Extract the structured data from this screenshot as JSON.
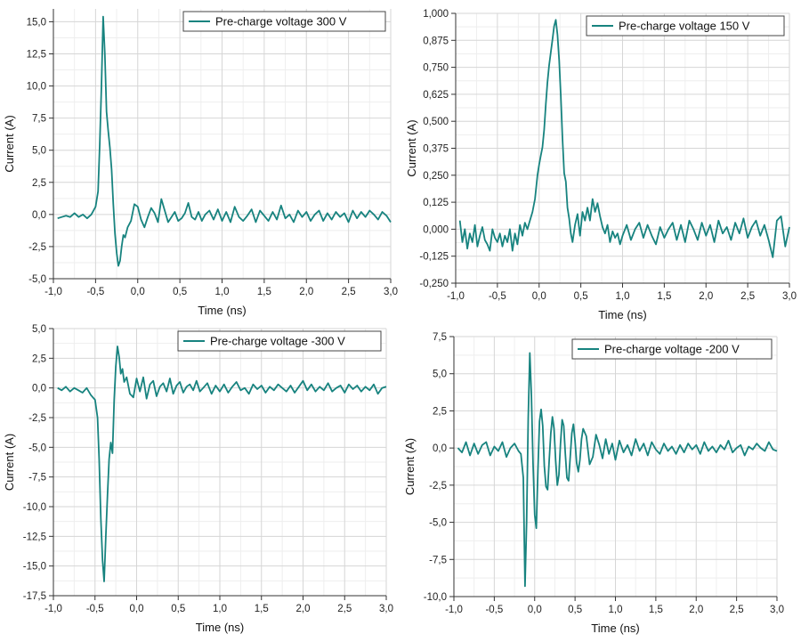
{
  "colors": {
    "trace": "#17837f",
    "grid": "#d6d6d6",
    "axis": "#333333",
    "minor": "#eeeeee"
  },
  "chart_data": [
    {
      "type": "line",
      "title": "",
      "xlabel": "Time (ns)",
      "ylabel": "Current (A)",
      "xlim": [
        -1.0,
        3.0
      ],
      "ylim": [
        -5.0,
        16.0
      ],
      "xticks": [
        -1.0,
        -0.5,
        0.0,
        0.5,
        1.0,
        1.5,
        2.0,
        2.5,
        3.0
      ],
      "xtick_labels": [
        "-1,0",
        "-0,5",
        "0,0",
        "0,5",
        "1,0",
        "1,5",
        "2,0",
        "2,5",
        "3,0"
      ],
      "yticks": [
        -5.0,
        -2.5,
        0.0,
        2.5,
        5.0,
        7.5,
        10.0,
        12.5,
        15.0
      ],
      "ytick_labels": [
        "-5,0",
        "-2,5",
        "0,0",
        "2,5",
        "5,0",
        "7,5",
        "10,0",
        "12,5",
        "15,0"
      ],
      "grid": true,
      "legend_position": "top-right",
      "series": [
        {
          "name": "Pre-charge voltage 300 V",
          "x": [
            -0.95,
            -0.9,
            -0.85,
            -0.8,
            -0.75,
            -0.7,
            -0.65,
            -0.6,
            -0.55,
            -0.5,
            -0.47,
            -0.45,
            -0.43,
            -0.41,
            -0.39,
            -0.37,
            -0.35,
            -0.33,
            -0.31,
            -0.29,
            -0.27,
            -0.25,
            -0.23,
            -0.21,
            -0.19,
            -0.17,
            -0.15,
            -0.12,
            -0.08,
            -0.04,
            0.0,
            0.04,
            0.08,
            0.12,
            0.16,
            0.2,
            0.24,
            0.28,
            0.32,
            0.36,
            0.4,
            0.44,
            0.48,
            0.52,
            0.56,
            0.6,
            0.64,
            0.68,
            0.72,
            0.76,
            0.8,
            0.85,
            0.9,
            0.95,
            1.0,
            1.05,
            1.1,
            1.15,
            1.2,
            1.25,
            1.3,
            1.35,
            1.4,
            1.45,
            1.5,
            1.55,
            1.6,
            1.65,
            1.7,
            1.75,
            1.8,
            1.85,
            1.9,
            1.95,
            2.0,
            2.05,
            2.1,
            2.15,
            2.2,
            2.25,
            2.3,
            2.35,
            2.4,
            2.45,
            2.5,
            2.55,
            2.6,
            2.65,
            2.7,
            2.75,
            2.8,
            2.85,
            2.9,
            2.95,
            3.0
          ],
          "y": [
            -0.3,
            -0.2,
            -0.1,
            -0.2,
            0.1,
            -0.2,
            0.0,
            -0.3,
            0.0,
            0.6,
            1.8,
            5.5,
            10.0,
            15.4,
            12.5,
            8.0,
            6.5,
            5.2,
            3.5,
            0.8,
            -1.5,
            -3.0,
            -4.0,
            -3.6,
            -2.5,
            -1.6,
            -1.8,
            -1.0,
            -0.5,
            0.8,
            0.6,
            -0.4,
            -1.0,
            -0.2,
            0.5,
            0.1,
            -0.6,
            1.2,
            0.3,
            -0.6,
            -0.2,
            0.2,
            -0.5,
            -0.3,
            0.1,
            0.9,
            -0.2,
            -0.4,
            0.2,
            -0.5,
            0.0,
            0.3,
            -0.4,
            0.4,
            -0.5,
            0.2,
            -0.6,
            0.6,
            -0.2,
            -0.5,
            -0.1,
            0.4,
            -0.6,
            0.3,
            -0.1,
            -0.5,
            0.2,
            -0.4,
            0.7,
            -0.3,
            0.0,
            -0.6,
            0.3,
            -0.2,
            0.2,
            -0.5,
            0.0,
            0.3,
            -0.5,
            0.1,
            -0.4,
            0.2,
            -0.2,
            0.1,
            -0.6,
            0.3,
            -0.3,
            0.2,
            -0.2,
            0.3,
            0.0,
            -0.4,
            0.2,
            -0.1,
            -0.6
          ]
        }
      ]
    },
    {
      "type": "line",
      "title": "",
      "xlabel": "Time (ns)",
      "ylabel": "Current (A)",
      "xlim": [
        -1.0,
        3.0
      ],
      "ylim": [
        -0.25,
        1.0
      ],
      "xticks": [
        -1.0,
        -0.5,
        0.0,
        0.5,
        1.0,
        1.5,
        2.0,
        2.5,
        3.0
      ],
      "xtick_labels": [
        "-1,0",
        "-0,5",
        "0,0",
        "0,5",
        "1,0",
        "1,5",
        "2,0",
        "2,5",
        "3,0"
      ],
      "yticks": [
        -0.25,
        -0.125,
        0.0,
        0.125,
        0.25,
        0.375,
        0.5,
        0.625,
        0.75,
        0.875,
        1.0
      ],
      "ytick_labels": [
        "-0,250",
        "-0,125",
        "0,000",
        "0,125",
        "0,250",
        "0,375",
        "0,500",
        "0,625",
        "0,750",
        "0,875",
        "1,000"
      ],
      "grid": true,
      "legend_position": "top-right",
      "series": [
        {
          "name": "Pre-charge voltage 150 V",
          "x": [
            -0.95,
            -0.92,
            -0.89,
            -0.86,
            -0.83,
            -0.8,
            -0.77,
            -0.74,
            -0.71,
            -0.68,
            -0.65,
            -0.62,
            -0.59,
            -0.56,
            -0.53,
            -0.5,
            -0.47,
            -0.44,
            -0.41,
            -0.38,
            -0.35,
            -0.32,
            -0.29,
            -0.26,
            -0.23,
            -0.2,
            -0.17,
            -0.14,
            -0.11,
            -0.08,
            -0.05,
            -0.02,
            0.0,
            0.02,
            0.04,
            0.06,
            0.08,
            0.1,
            0.12,
            0.14,
            0.16,
            0.18,
            0.2,
            0.22,
            0.24,
            0.26,
            0.28,
            0.3,
            0.32,
            0.34,
            0.36,
            0.38,
            0.4,
            0.43,
            0.46,
            0.49,
            0.52,
            0.55,
            0.58,
            0.61,
            0.64,
            0.67,
            0.7,
            0.73,
            0.76,
            0.79,
            0.82,
            0.85,
            0.88,
            0.91,
            0.94,
            0.97,
            1.0,
            1.05,
            1.1,
            1.15,
            1.2,
            1.25,
            1.3,
            1.35,
            1.4,
            1.45,
            1.5,
            1.55,
            1.6,
            1.65,
            1.7,
            1.75,
            1.8,
            1.85,
            1.9,
            1.95,
            2.0,
            2.05,
            2.1,
            2.15,
            2.2,
            2.25,
            2.3,
            2.35,
            2.4,
            2.45,
            2.5,
            2.55,
            2.6,
            2.65,
            2.7,
            2.75,
            2.8,
            2.85,
            2.9,
            2.95,
            3.0
          ],
          "y": [
            0.04,
            -0.06,
            0.0,
            -0.09,
            -0.02,
            -0.06,
            0.02,
            -0.08,
            -0.03,
            0.01,
            -0.05,
            -0.07,
            -0.1,
            0.0,
            -0.04,
            -0.06,
            -0.02,
            -0.08,
            -0.03,
            -0.06,
            0.0,
            -0.1,
            -0.02,
            -0.07,
            0.02,
            -0.03,
            0.03,
            0.0,
            0.04,
            0.08,
            0.14,
            0.25,
            0.3,
            0.34,
            0.38,
            0.46,
            0.58,
            0.68,
            0.76,
            0.82,
            0.88,
            0.94,
            0.97,
            0.9,
            0.78,
            0.62,
            0.42,
            0.26,
            0.22,
            0.1,
            0.05,
            -0.02,
            -0.06,
            0.02,
            0.07,
            -0.03,
            0.08,
            0.04,
            0.1,
            0.04,
            0.14,
            0.08,
            0.12,
            0.06,
            0.01,
            -0.02,
            0.02,
            -0.06,
            -0.01,
            -0.04,
            -0.02,
            -0.07,
            -0.03,
            0.02,
            -0.05,
            0.0,
            0.03,
            -0.04,
            0.02,
            -0.03,
            -0.07,
            0.01,
            -0.04,
            0.0,
            0.03,
            -0.05,
            0.02,
            -0.06,
            0.04,
            0.0,
            -0.05,
            0.03,
            -0.03,
            0.02,
            -0.06,
            0.04,
            -0.02,
            0.01,
            -0.05,
            0.03,
            -0.02,
            0.05,
            -0.04,
            0.01,
            0.04,
            -0.03,
            0.02,
            -0.05,
            -0.13,
            0.04,
            0.06,
            -0.08,
            0.01
          ]
        }
      ]
    },
    {
      "type": "line",
      "title": "",
      "xlabel": "Time (ns)",
      "ylabel": "Current (A)",
      "xlim": [
        -1.0,
        3.0
      ],
      "ylim": [
        -17.5,
        5.0
      ],
      "xticks": [
        -1.0,
        -0.5,
        0.0,
        0.5,
        1.0,
        1.5,
        2.0,
        2.5,
        3.0
      ],
      "xtick_labels": [
        "-1,0",
        "-0,5",
        "0,0",
        "0,5",
        "1,0",
        "1,5",
        "2,0",
        "2,5",
        "3,0"
      ],
      "yticks": [
        -17.5,
        -15.0,
        -12.5,
        -10.0,
        -7.5,
        -5.0,
        -2.5,
        0.0,
        2.5,
        5.0
      ],
      "ytick_labels": [
        "-17,5",
        "-15,0",
        "-12,5",
        "-10,0",
        "-7,5",
        "-5,0",
        "-2,5",
        "0,0",
        "2,5",
        "5,0"
      ],
      "grid": true,
      "legend_position": "top-right",
      "series": [
        {
          "name": "Pre-charge voltage -300 V",
          "x": [
            -0.95,
            -0.9,
            -0.85,
            -0.8,
            -0.75,
            -0.7,
            -0.65,
            -0.6,
            -0.55,
            -0.5,
            -0.47,
            -0.45,
            -0.43,
            -0.41,
            -0.39,
            -0.37,
            -0.35,
            -0.33,
            -0.31,
            -0.29,
            -0.27,
            -0.25,
            -0.23,
            -0.21,
            -0.19,
            -0.17,
            -0.15,
            -0.12,
            -0.08,
            -0.04,
            0.0,
            0.04,
            0.08,
            0.12,
            0.16,
            0.2,
            0.24,
            0.28,
            0.32,
            0.36,
            0.4,
            0.44,
            0.48,
            0.52,
            0.56,
            0.6,
            0.64,
            0.68,
            0.72,
            0.76,
            0.8,
            0.85,
            0.9,
            0.95,
            1.0,
            1.05,
            1.1,
            1.15,
            1.2,
            1.25,
            1.3,
            1.35,
            1.4,
            1.45,
            1.5,
            1.55,
            1.6,
            1.65,
            1.7,
            1.75,
            1.8,
            1.85,
            1.9,
            1.95,
            2.0,
            2.05,
            2.1,
            2.15,
            2.2,
            2.25,
            2.3,
            2.35,
            2.4,
            2.45,
            2.5,
            2.55,
            2.6,
            2.65,
            2.7,
            2.75,
            2.8,
            2.85,
            2.9,
            2.95,
            3.0
          ],
          "y": [
            0.0,
            -0.2,
            0.1,
            -0.3,
            0.0,
            -0.2,
            -0.4,
            0.0,
            -0.6,
            -1.0,
            -2.5,
            -6.0,
            -11.0,
            -14.5,
            -16.3,
            -12.5,
            -9.0,
            -6.0,
            -4.6,
            -5.5,
            -1.0,
            1.8,
            3.5,
            2.6,
            1.2,
            1.6,
            0.5,
            0.9,
            -0.5,
            -0.8,
            0.8,
            -0.3,
            0.9,
            -0.9,
            0.3,
            0.6,
            -0.7,
            0.1,
            0.4,
            -0.3,
            0.8,
            -0.5,
            0.2,
            0.5,
            -0.4,
            0.1,
            0.3,
            -0.2,
            0.6,
            -0.3,
            0.0,
            0.4,
            -0.5,
            0.2,
            -0.3,
            0.3,
            -0.4,
            0.1,
            0.5,
            -0.2,
            0.0,
            -0.5,
            0.3,
            -0.1,
            0.2,
            -0.4,
            0.1,
            -0.2,
            0.3,
            0.0,
            -0.3,
            0.2,
            -0.4,
            0.1,
            0.6,
            -0.2,
            0.3,
            -0.3,
            0.1,
            -0.2,
            0.4,
            -0.3,
            0.0,
            0.2,
            -0.4,
            0.3,
            -0.1,
            0.2,
            -0.3,
            0.1,
            -0.2,
            0.3,
            -0.5,
            0.0,
            0.1
          ]
        }
      ]
    },
    {
      "type": "line",
      "title": "",
      "xlabel": "Time (ns)",
      "ylabel": "Current (A)",
      "xlim": [
        -1.0,
        3.0
      ],
      "ylim": [
        -10.0,
        7.5
      ],
      "xticks": [
        -1.0,
        -0.5,
        0.0,
        0.5,
        1.0,
        1.5,
        2.0,
        2.5,
        3.0
      ],
      "xtick_labels": [
        "-1,0",
        "-0,5",
        "0,0",
        "0,5",
        "1,0",
        "1,5",
        "2,0",
        "2,5",
        "3,0"
      ],
      "yticks": [
        -10.0,
        -7.5,
        -5.0,
        -2.5,
        0.0,
        2.5,
        5.0,
        7.5
      ],
      "ytick_labels": [
        "-10,0",
        "-7,5",
        "-5,0",
        "-2,5",
        "0,0",
        "2,5",
        "5,0",
        "7,5"
      ],
      "grid": true,
      "legend_position": "top-right",
      "series": [
        {
          "name": "Pre-charge voltage -200 V",
          "x": [
            -0.95,
            -0.9,
            -0.85,
            -0.8,
            -0.75,
            -0.7,
            -0.65,
            -0.6,
            -0.55,
            -0.5,
            -0.45,
            -0.4,
            -0.35,
            -0.3,
            -0.25,
            -0.2,
            -0.17,
            -0.14,
            -0.12,
            -0.1,
            -0.08,
            -0.06,
            -0.04,
            -0.02,
            0.0,
            0.02,
            0.04,
            0.06,
            0.08,
            0.1,
            0.12,
            0.14,
            0.16,
            0.18,
            0.2,
            0.22,
            0.24,
            0.26,
            0.28,
            0.3,
            0.32,
            0.34,
            0.36,
            0.38,
            0.4,
            0.42,
            0.44,
            0.46,
            0.48,
            0.5,
            0.52,
            0.54,
            0.56,
            0.58,
            0.6,
            0.64,
            0.68,
            0.72,
            0.76,
            0.8,
            0.84,
            0.88,
            0.92,
            0.96,
            1.0,
            1.05,
            1.1,
            1.15,
            1.2,
            1.25,
            1.3,
            1.35,
            1.4,
            1.45,
            1.5,
            1.55,
            1.6,
            1.65,
            1.7,
            1.75,
            1.8,
            1.85,
            1.9,
            1.95,
            2.0,
            2.05,
            2.1,
            2.15,
            2.2,
            2.25,
            2.3,
            2.35,
            2.4,
            2.45,
            2.5,
            2.55,
            2.6,
            2.65,
            2.7,
            2.75,
            2.8,
            2.85,
            2.9,
            2.95,
            3.0
          ],
          "y": [
            0.0,
            -0.3,
            0.4,
            -0.5,
            0.3,
            -0.4,
            0.2,
            0.4,
            -0.5,
            0.1,
            -0.2,
            0.4,
            -0.6,
            0.0,
            0.3,
            -0.2,
            -0.4,
            -2.0,
            -9.3,
            -5.0,
            2.0,
            6.4,
            3.5,
            -1.0,
            -4.5,
            -5.4,
            -1.5,
            1.8,
            2.6,
            1.5,
            -1.2,
            -2.6,
            -2.8,
            -0.8,
            1.0,
            2.1,
            1.3,
            -0.8,
            -2.5,
            -1.8,
            0.3,
            1.9,
            1.5,
            -0.4,
            -2.0,
            -2.2,
            -0.6,
            1.0,
            1.6,
            0.5,
            -1.0,
            -1.6,
            -0.8,
            0.6,
            1.3,
            0.8,
            -1.1,
            -0.6,
            0.9,
            0.2,
            -0.7,
            0.6,
            -0.4,
            0.3,
            -0.8,
            0.5,
            -0.3,
            0.2,
            -0.5,
            0.6,
            -0.2,
            0.3,
            -0.5,
            0.4,
            -0.1,
            -0.4,
            0.3,
            -0.2,
            0.1,
            -0.4,
            0.2,
            -0.3,
            0.3,
            -0.1,
            0.2,
            -0.4,
            0.4,
            -0.2,
            0.1,
            -0.3,
            0.2,
            -0.1,
            0.5,
            -0.3,
            0.0,
            0.2,
            -0.5,
            0.1,
            -0.1,
            0.3,
            0.0,
            -0.2,
            0.4,
            -0.1,
            -0.2
          ]
        }
      ]
    }
  ]
}
